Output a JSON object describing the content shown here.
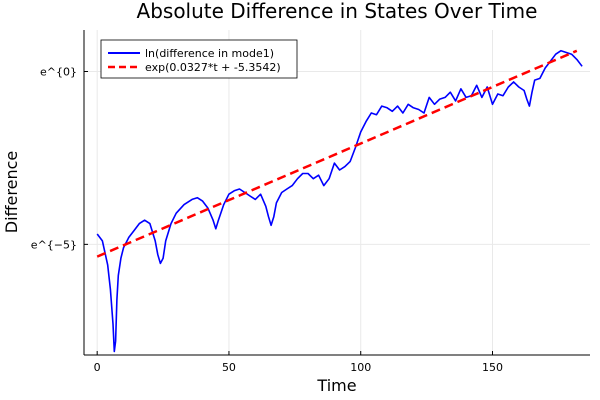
{
  "chart_data": {
    "type": "line",
    "title": "Absolute Difference in States Over Time",
    "xlabel": "Time",
    "ylabel": "Difference",
    "xlim": [
      -5,
      187
    ],
    "ylim": [
      -8.2,
      1.2
    ],
    "xticks": [
      0,
      50,
      100,
      150
    ],
    "xtick_labels": [
      "0",
      "50",
      "100",
      "150"
    ],
    "yticks": [
      -5,
      0
    ],
    "ytick_labels": [
      "e^{−5}",
      "e^{0}"
    ],
    "grid": true,
    "legend_position": "top-left",
    "series": [
      {
        "name": "ln(difference in mode1)",
        "color": "#0000ff",
        "style": "solid",
        "x": [
          0,
          2,
          4,
          5,
          6,
          6.5,
          7,
          7.5,
          8,
          9,
          10,
          12,
          14,
          16,
          18,
          20,
          22,
          23,
          24,
          25,
          26,
          28,
          30,
          33,
          36,
          38,
          40,
          42,
          44,
          45,
          46,
          48,
          50,
          52,
          54,
          56,
          58,
          60,
          62,
          64,
          65,
          66,
          67,
          68,
          70,
          72,
          74,
          76,
          78,
          80,
          82,
          84,
          86,
          88,
          90,
          92,
          94,
          96,
          98,
          100,
          102,
          104,
          106,
          108,
          110,
          112,
          114,
          116,
          118,
          120,
          122,
          124,
          126,
          128,
          130,
          132,
          134,
          136,
          138,
          140,
          142,
          144,
          146,
          148,
          150,
          152,
          154,
          156,
          158,
          160,
          162,
          163,
          164,
          165,
          166,
          168,
          170,
          172,
          174,
          176,
          178,
          180,
          182,
          184
        ],
        "y": [
          -4.7,
          -4.9,
          -5.6,
          -6.3,
          -7.3,
          -8.1,
          -7.8,
          -6.6,
          -5.9,
          -5.4,
          -5.1,
          -4.8,
          -4.6,
          -4.4,
          -4.3,
          -4.4,
          -4.9,
          -5.3,
          -5.55,
          -5.4,
          -4.9,
          -4.4,
          -4.1,
          -3.85,
          -3.7,
          -3.65,
          -3.75,
          -3.95,
          -4.3,
          -4.55,
          -4.3,
          -3.85,
          -3.55,
          -3.45,
          -3.4,
          -3.5,
          -3.6,
          -3.7,
          -3.55,
          -3.9,
          -4.2,
          -4.45,
          -4.2,
          -3.8,
          -3.5,
          -3.4,
          -3.3,
          -3.1,
          -2.95,
          -2.95,
          -3.1,
          -3.0,
          -3.3,
          -3.1,
          -2.65,
          -2.85,
          -2.75,
          -2.6,
          -2.2,
          -1.75,
          -1.45,
          -1.2,
          -1.25,
          -1.0,
          -1.05,
          -1.15,
          -1.0,
          -1.2,
          -0.95,
          -1.05,
          -1.1,
          -1.2,
          -0.75,
          -0.95,
          -0.8,
          -0.75,
          -0.6,
          -0.85,
          -0.5,
          -0.75,
          -0.7,
          -0.4,
          -0.75,
          -0.45,
          -0.95,
          -0.65,
          -0.7,
          -0.45,
          -0.3,
          -0.45,
          -0.55,
          -0.8,
          -1.0,
          -0.6,
          -0.25,
          -0.2,
          0.1,
          0.3,
          0.5,
          0.6,
          0.55,
          0.5,
          0.35,
          0.15
        ]
      },
      {
        "name": "exp(0.0327*t + -5.3542)",
        "color": "#ff0000",
        "style": "dashed",
        "x": [
          0,
          182
        ],
        "y": [
          -5.3542,
          0.5972
        ]
      }
    ]
  }
}
